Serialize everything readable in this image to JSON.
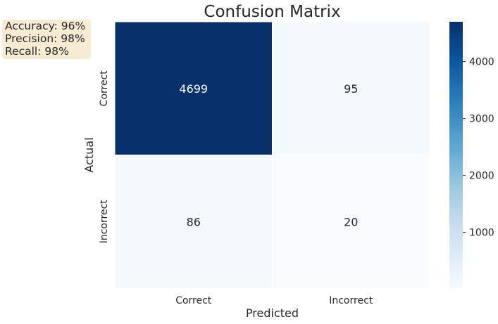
{
  "chart_data": {
    "type": "heatmap",
    "title": "Confusion Matrix",
    "xlabel": "Predicted",
    "ylabel": "Actual",
    "x_categories": [
      "Correct",
      "Incorrect"
    ],
    "y_categories": [
      "Correct",
      "Incorrect"
    ],
    "values": [
      [
        4699,
        95
      ],
      [
        86,
        20
      ]
    ],
    "colormap": "Blues",
    "colorbar": {
      "min": 20,
      "max": 4699,
      "ticks": [
        1000,
        2000,
        3000,
        4000
      ]
    }
  },
  "stats": {
    "accuracy": "Accuracy: 96%",
    "precision": "Precision: 98%",
    "recall": "Recall: 98%"
  }
}
